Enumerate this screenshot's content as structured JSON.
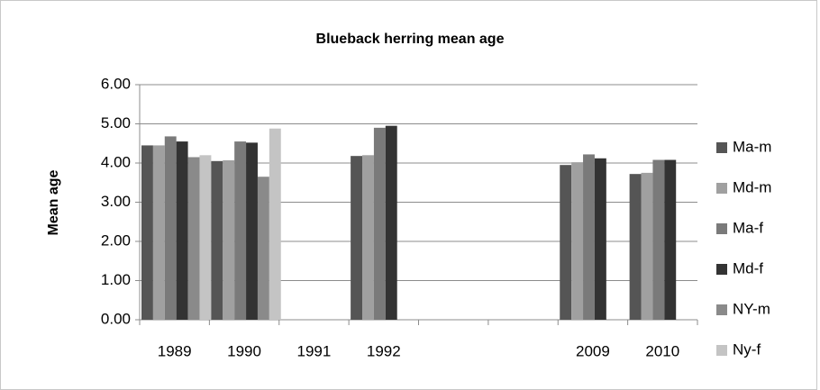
{
  "chart_data": {
    "type": "bar",
    "title": "Blueback herring mean age",
    "y_label": "Mean age",
    "categories": [
      "1989",
      "1990",
      "1991",
      "1992",
      null,
      null,
      "2009",
      "2010"
    ],
    "series": [
      {
        "name": "Ma-m",
        "color": "#555555",
        "values": [
          4.45,
          4.05,
          null,
          4.18,
          null,
          null,
          3.95,
          3.72
        ]
      },
      {
        "name": "Md-m",
        "color": "#a0a0a0",
        "values": [
          4.45,
          4.07,
          null,
          4.2,
          null,
          null,
          4.02,
          3.75
        ]
      },
      {
        "name": "Ma-f",
        "color": "#7a7a7a",
        "values": [
          4.68,
          4.55,
          null,
          4.9,
          null,
          null,
          4.22,
          4.08
        ]
      },
      {
        "name": "Md-f",
        "color": "#333333",
        "values": [
          4.55,
          4.52,
          null,
          4.95,
          null,
          null,
          4.12,
          4.08
        ]
      },
      {
        "name": "NY-m",
        "color": "#8a8a8a",
        "values": [
          4.15,
          3.65,
          null,
          null,
          null,
          null,
          null,
          null
        ]
      },
      {
        "name": "Ny-f",
        "color": "#c4c4c4",
        "values": [
          4.2,
          4.88,
          null,
          null,
          null,
          null,
          null,
          null
        ]
      }
    ],
    "ylim": [
      0,
      6
    ],
    "yticks": [
      {
        "value": 0,
        "label": "0.00"
      },
      {
        "value": 1,
        "label": "1.00"
      },
      {
        "value": 2,
        "label": "2.00"
      },
      {
        "value": 3,
        "label": "3.00"
      },
      {
        "value": 4,
        "label": "4.00"
      },
      {
        "value": 5,
        "label": "5.00"
      },
      {
        "value": 6,
        "label": "6.00"
      }
    ],
    "grid": true,
    "legend": "right"
  }
}
